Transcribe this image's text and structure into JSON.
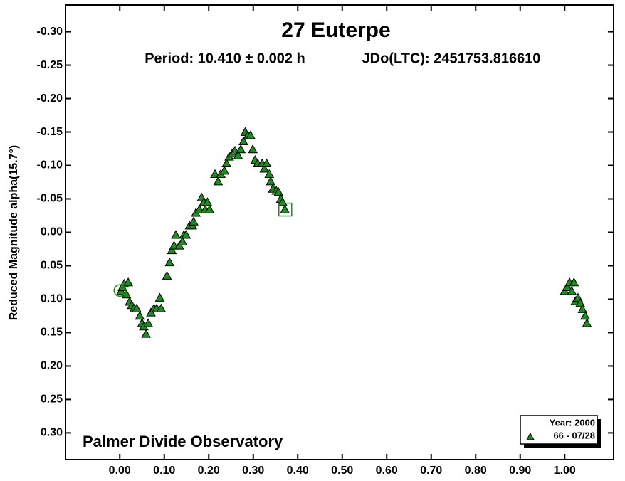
{
  "chart_data": {
    "type": "scatter",
    "title": "27 Euterpe",
    "subtitle": "Period: 10.410 ± 0.002 h",
    "epoch": "JDo(LTC): 2451753.816610",
    "y_label": "Reduced Magnitude alpha(15.7°)",
    "annotation": "Palmer Divide Observatory",
    "legend_title": "Year: 2000",
    "legend_position": "lower right",
    "invert_y": true,
    "xlim": [
      -0.122,
      1.11
    ],
    "ylim": [
      -0.34,
      0.34
    ],
    "xticks": [
      {
        "value": 0,
        "label": "0.00"
      },
      {
        "value": 0.1,
        "label": "0.10"
      },
      {
        "value": 0.2,
        "label": "0.20"
      },
      {
        "value": 0.3,
        "label": "0.30"
      },
      {
        "value": 0.4,
        "label": "0.40"
      },
      {
        "value": 0.5,
        "label": "0.50"
      },
      {
        "value": 0.6,
        "label": "0.60"
      },
      {
        "value": 0.7,
        "label": "0.70"
      },
      {
        "value": 0.8,
        "label": "0.80"
      },
      {
        "value": 0.9,
        "label": "0.90"
      },
      {
        "value": 1,
        "label": "1.00"
      }
    ],
    "yticks": [
      {
        "value": -0.3,
        "label": "-0.30"
      },
      {
        "value": -0.25,
        "label": "-0.25"
      },
      {
        "value": -0.2,
        "label": "-0.20"
      },
      {
        "value": -0.15,
        "label": "-0.15"
      },
      {
        "value": -0.1,
        "label": "-0.10"
      },
      {
        "value": -0.05,
        "label": "-0.05"
      },
      {
        "value": 0,
        "label": "0.00"
      },
      {
        "value": 0.05,
        "label": "0.05"
      },
      {
        "value": 0.1,
        "label": "0.10"
      },
      {
        "value": 0.15,
        "label": "0.15"
      },
      {
        "value": 0.2,
        "label": "0.20"
      },
      {
        "value": 0.25,
        "label": "0.25"
      },
      {
        "value": 0.3,
        "label": "0.30"
      }
    ],
    "start_marker": {
      "x": 0.0,
      "y": 0.087
    },
    "end_marker": {
      "x": 0.372,
      "y": -0.034
    },
    "series": [
      {
        "name": "66 - 07/28",
        "color": "#1e8c1e",
        "x": [
          0.003,
          0.006,
          0.01,
          0.015,
          0.019,
          0.022,
          0.027,
          0.032,
          0.038,
          0.045,
          0.05,
          0.054,
          0.059,
          0.064,
          0.07,
          0.077,
          0.083,
          0.09,
          0.093,
          0.106,
          0.112,
          0.117,
          0.122,
          0.126,
          0.134,
          0.141,
          0.144,
          0.149,
          0.157,
          0.163,
          0.166,
          0.171,
          0.179,
          0.184,
          0.189,
          0.192,
          0.197,
          0.202,
          0.214,
          0.221,
          0.227,
          0.235,
          0.24,
          0.246,
          0.253,
          0.259,
          0.266,
          0.272,
          0.278,
          0.282,
          0.288,
          0.294,
          0.299,
          0.304,
          0.31,
          0.32,
          0.325,
          0.33,
          0.336,
          0.339,
          0.344,
          0.352,
          0.357,
          0.362,
          0.366,
          0.371,
          1.0,
          1.006,
          1.011,
          1.016,
          1.021,
          1.024,
          1.03,
          1.035,
          1.04,
          1.046,
          1.05
        ],
        "values": [
          0.088,
          0.082,
          0.077,
          0.093,
          0.075,
          0.104,
          0.109,
          0.114,
          0.114,
          0.125,
          0.136,
          0.141,
          0.152,
          0.136,
          0.12,
          0.114,
          0.114,
          0.098,
          0.114,
          0.065,
          0.045,
          0.027,
          0.02,
          0.004,
          0.02,
          0.014,
          0.004,
          0.004,
          -0.01,
          -0.01,
          -0.016,
          -0.029,
          -0.034,
          -0.052,
          -0.045,
          -0.034,
          -0.045,
          -0.034,
          -0.087,
          -0.076,
          -0.087,
          -0.092,
          -0.103,
          -0.113,
          -0.118,
          -0.122,
          -0.115,
          -0.124,
          -0.136,
          -0.15,
          -0.145,
          -0.145,
          -0.124,
          -0.108,
          -0.103,
          -0.103,
          -0.095,
          -0.103,
          -0.087,
          -0.076,
          -0.065,
          -0.062,
          -0.06,
          -0.05,
          -0.045,
          -0.034,
          0.088,
          0.082,
          0.075,
          0.088,
          0.075,
          0.103,
          0.098,
          0.106,
          0.115,
          0.125,
          0.136
        ]
      }
    ]
  }
}
